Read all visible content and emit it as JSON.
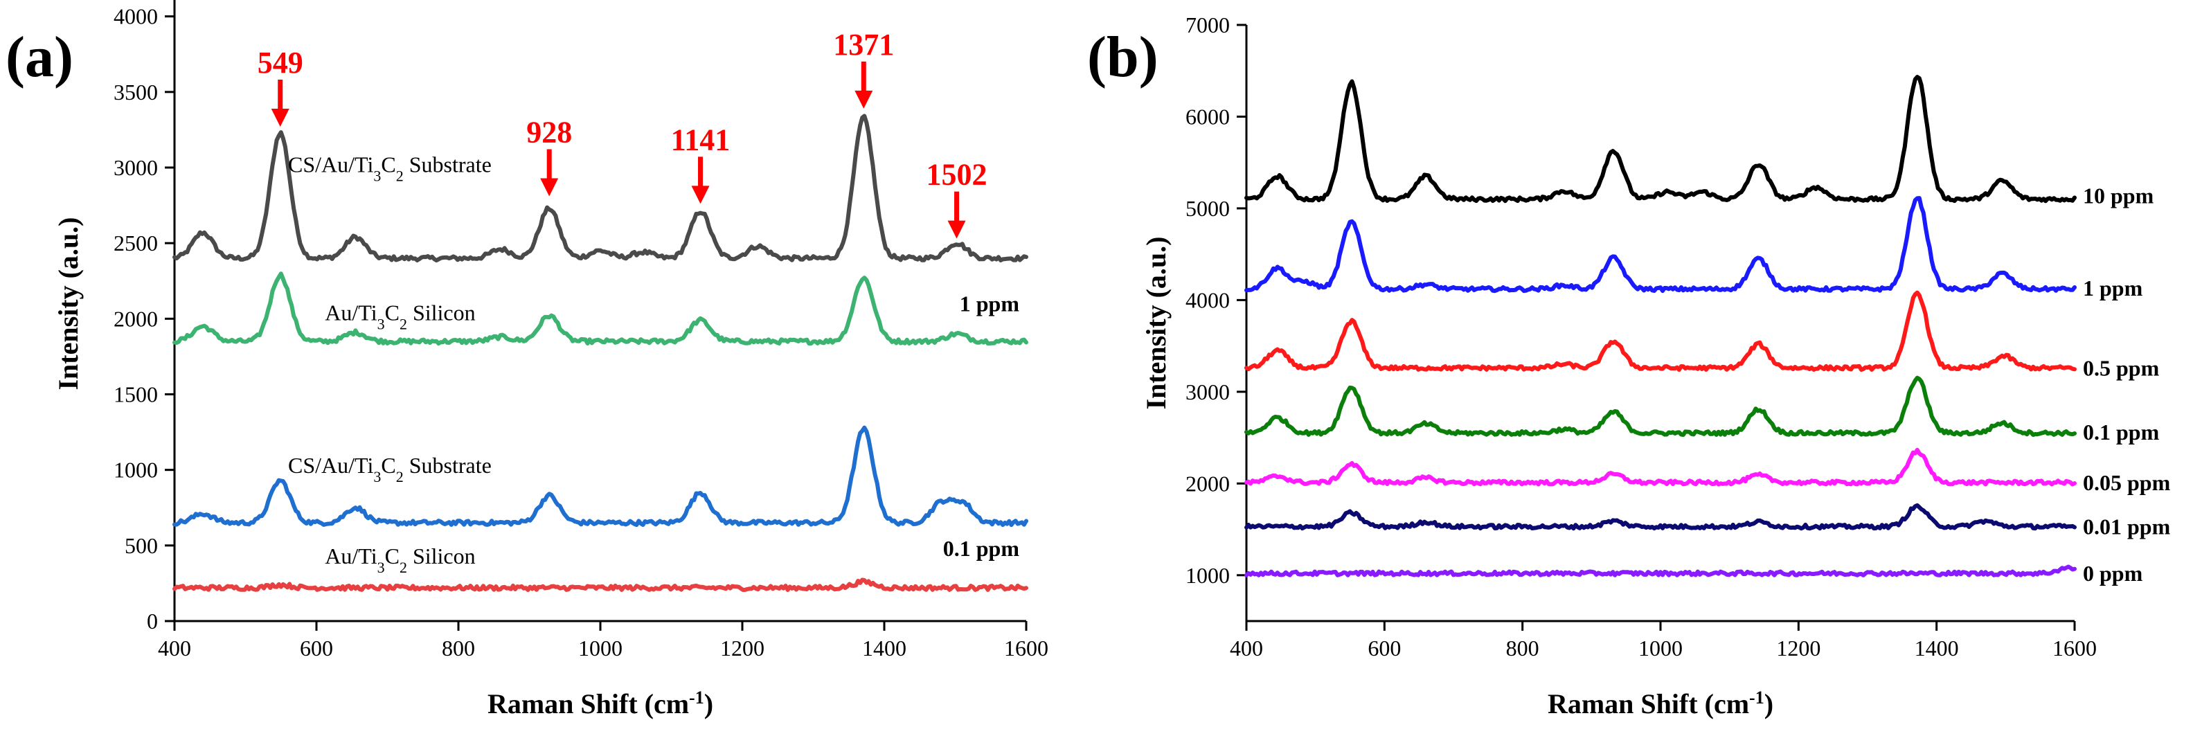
{
  "chart_data": [
    {
      "panel": "(a)",
      "type": "line",
      "xlabel": "Raman Shift (cm",
      "xlabel_sup": "-1",
      "xlabel_end": ")",
      "ylabel": "Intensity (a.u.)",
      "xlim": [
        400,
        1600
      ],
      "ylim": [
        0,
        4200
      ],
      "xticks": [
        400,
        600,
        800,
        1000,
        1200,
        1400,
        1600
      ],
      "yticks": [
        0,
        500,
        1000,
        1500,
        2000,
        2500,
        3000,
        3500,
        4000
      ],
      "peaks": [
        {
          "x": 549,
          "label": "549",
          "tip": 3270
        },
        {
          "x": 928,
          "label": "928",
          "tip": 2810
        },
        {
          "x": 1141,
          "label": "1141",
          "tip": 2760
        },
        {
          "x": 1371,
          "label": "1371",
          "tip": 3390
        },
        {
          "x": 1502,
          "label": "1502",
          "tip": 2530
        }
      ],
      "series": [
        {
          "name": "CS/Au/Ti3C2 Substrate 1 ppm",
          "color": "#4a4a4a",
          "baseline": 2400,
          "peaks": [
            [
              440,
              170
            ],
            [
              549,
              830
            ],
            [
              655,
              140
            ],
            [
              860,
              60
            ],
            [
              928,
              330
            ],
            [
              1000,
              50
            ],
            [
              1060,
              40
            ],
            [
              1141,
              310
            ],
            [
              1222,
              80
            ],
            [
              1371,
              930
            ],
            [
              1502,
              100
            ]
          ]
        },
        {
          "name": "Au/Ti3C2 Silicon 1 ppm",
          "color": "#3cb371",
          "baseline": 1850,
          "peaks": [
            [
              440,
              100
            ],
            [
              549,
              440
            ],
            [
              655,
              60
            ],
            [
              860,
              30
            ],
            [
              928,
              170
            ],
            [
              1141,
              140
            ],
            [
              1371,
              420
            ],
            [
              1502,
              50
            ]
          ]
        },
        {
          "name": "CS/Au/Ti3C2 Substrate 0.1 ppm",
          "color": "#1f6fd0",
          "baseline": 650,
          "peaks": [
            [
              440,
              60
            ],
            [
              549,
              280
            ],
            [
              655,
              100
            ],
            [
              928,
              180
            ],
            [
              1141,
              200
            ],
            [
              1371,
              620
            ],
            [
              1480,
              130
            ],
            [
              1510,
              130
            ]
          ]
        },
        {
          "name": "Au/Ti3C2 Silicon 0.1 ppm",
          "color": "#e84040",
          "baseline": 220,
          "peaks": [
            [
              549,
              20
            ],
            [
              1371,
              40
            ]
          ]
        }
      ],
      "labels": [
        {
          "main": "CS/Au/Ti",
          "sub1": "3",
          "mid": "C",
          "sub2": "2",
          "tail": " Substrate",
          "x": 560,
          "y": 2970
        },
        {
          "main": "Au/Ti",
          "sub1": "3",
          "mid": "C",
          "sub2": "2",
          "tail": " Silicon",
          "x": 612,
          "y": 1990
        },
        {
          "main": "CS/Au/Ti",
          "sub1": "3",
          "mid": "C",
          "sub2": "2",
          "tail": " Substrate",
          "x": 560,
          "y": 980
        },
        {
          "main": "Au/Ti",
          "sub1": "3",
          "mid": "C",
          "sub2": "2",
          "tail": " Silicon",
          "x": 612,
          "y": 380
        }
      ],
      "concentrations": [
        {
          "text": "1 ppm",
          "y": 2050
        },
        {
          "text": "0.1 ppm",
          "y": 430
        }
      ]
    },
    {
      "panel": "(b)",
      "type": "line",
      "xlabel": "Raman Shift (cm",
      "xlabel_sup": "-1",
      "xlabel_end": ")",
      "ylabel": "Intensity (a.u.)",
      "xlim": [
        400,
        1600
      ],
      "ylim": [
        500,
        7000
      ],
      "xticks": [
        400,
        600,
        800,
        1000,
        1200,
        1400,
        1600
      ],
      "yticks": [
        1000,
        2000,
        3000,
        4000,
        5000,
        6000,
        7000
      ],
      "series": [
        {
          "name": "10 ppm",
          "color": "#000000",
          "baseline": 5100,
          "peaks": [
            [
              445,
              250
            ],
            [
              552,
              1270
            ],
            [
              660,
              250
            ],
            [
              860,
              90
            ],
            [
              932,
              530
            ],
            [
              1010,
              80
            ],
            [
              1060,
              80
            ],
            [
              1142,
              380
            ],
            [
              1225,
              130
            ],
            [
              1372,
              1350
            ],
            [
              1495,
              200
            ]
          ]
        },
        {
          "name": "1 ppm",
          "color": "#1a1aff",
          "baseline": 4120,
          "peaks": [
            [
              445,
              230
            ],
            [
              485,
              80
            ],
            [
              552,
              730
            ],
            [
              660,
              50
            ],
            [
              860,
              40
            ],
            [
              932,
              340
            ],
            [
              1142,
              330
            ],
            [
              1372,
              1000
            ],
            [
              1495,
              170
            ]
          ]
        },
        {
          "name": "0.5 ppm",
          "color": "#ff1a1a",
          "baseline": 3260,
          "peaks": [
            [
              445,
              190
            ],
            [
              552,
              510
            ],
            [
              860,
              40
            ],
            [
              932,
              290
            ],
            [
              1142,
              260
            ],
            [
              1372,
              820
            ],
            [
              1498,
              130
            ]
          ]
        },
        {
          "name": "0.1 ppm",
          "color": "#0a800a",
          "baseline": 2550,
          "peaks": [
            [
              445,
              170
            ],
            [
              552,
              500
            ],
            [
              660,
              100
            ],
            [
              860,
              40
            ],
            [
              932,
              230
            ],
            [
              1142,
              260
            ],
            [
              1372,
              600
            ],
            [
              1495,
              110
            ]
          ]
        },
        {
          "name": "0.05 ppm",
          "color": "#ff1aff",
          "baseline": 2010,
          "peaks": [
            [
              445,
              70
            ],
            [
              552,
              200
            ],
            [
              660,
              50
            ],
            [
              932,
              90
            ],
            [
              1142,
              80
            ],
            [
              1372,
              340
            ]
          ]
        },
        {
          "name": "0.01 ppm",
          "color": "#0a0a70",
          "baseline": 1530,
          "peaks": [
            [
              552,
              150
            ],
            [
              660,
              50
            ],
            [
              932,
              60
            ],
            [
              1142,
              50
            ],
            [
              1372,
              220
            ],
            [
              1470,
              60
            ]
          ]
        },
        {
          "name": "0 ppm",
          "color": "#8a1aff",
          "baseline": 1020,
          "peaks": [
            [
              1590,
              60
            ]
          ]
        }
      ],
      "legend_y": [
        5140,
        4130,
        3260,
        2560,
        2010,
        1530,
        1020
      ]
    }
  ]
}
